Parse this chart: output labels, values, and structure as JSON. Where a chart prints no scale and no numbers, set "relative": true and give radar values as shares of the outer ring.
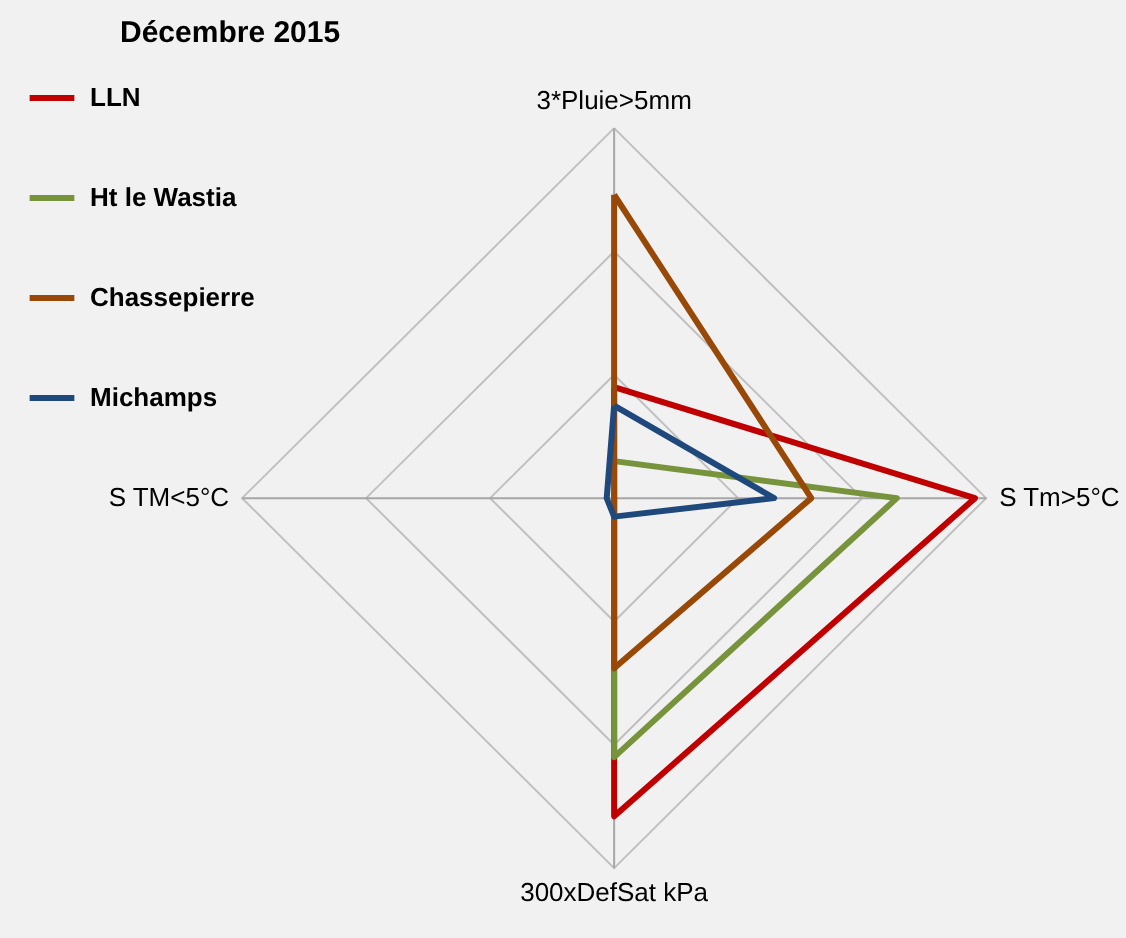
{
  "chart_data": {
    "type": "radar",
    "title": "Décembre 2015",
    "relative": true,
    "grid": true,
    "legend": "top left",
    "marker": "none",
    "categories": [
      "3*Pluie>5mm",
      "S Tm>5°C",
      "300xDefSat kPa",
      "S TM<5°C"
    ],
    "series": [
      {
        "name": "LLN",
        "color": "#c00000",
        "values": [
          0.3,
          0.97,
          0.86,
          0
        ]
      },
      {
        "name": "Ht le Wastia",
        "color": "#77933c",
        "values": [
          0.1,
          0.76,
          0.7,
          0
        ]
      },
      {
        "name": "Chassepierre",
        "color": "#984807",
        "values": [
          0.82,
          0.53,
          0.46,
          0
        ]
      },
      {
        "name": "Michamps",
        "color": "#1f497d",
        "values": [
          0.25,
          0.43,
          0.05,
          0.02
        ]
      }
    ]
  }
}
